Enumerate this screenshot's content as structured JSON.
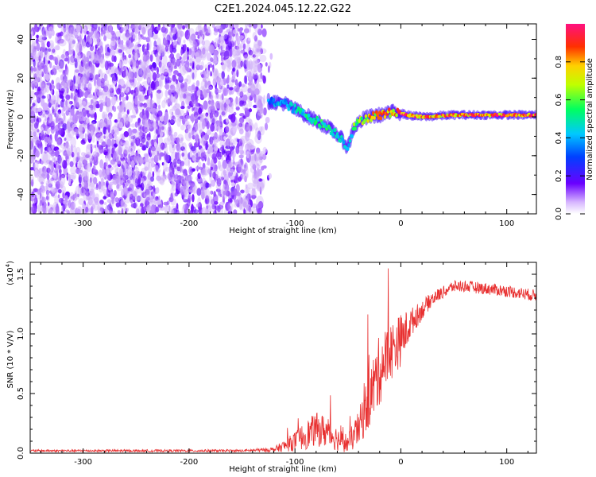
{
  "title": "C2E1.2024.045.12.22.G22",
  "colors": {
    "snr_line": "#e83030",
    "spectrogram_noise": "#7a1ff0",
    "spectrogram_noise_light": "#c9a3f6"
  },
  "colorbar": {
    "label": "Normalized spectral amplitude",
    "ticks": [
      "0.0",
      "0.2",
      "0.4",
      "0.6",
      "0.8"
    ],
    "tick_values": [
      0.0,
      0.2,
      0.4,
      0.6,
      0.8
    ]
  },
  "chart_data": [
    {
      "type": "heatmap",
      "xlabel": "Height of straight line (km)",
      "ylabel": "Frequency (Hz)",
      "xlim": [
        -350,
        128
      ],
      "ylim": [
        -50,
        48
      ],
      "xticks": [
        -300,
        -200,
        -100,
        0,
        100
      ],
      "xtick_labels": [
        "-300",
        "-200",
        "-100",
        "0",
        "100"
      ],
      "yticks": [
        -40,
        -20,
        0,
        20,
        40
      ],
      "ytick_labels": [
        "-40",
        "-20",
        "0",
        "20",
        "40"
      ],
      "colorbar_range": [
        0,
        1
      ],
      "noise_region_x": [
        -350,
        -130
      ],
      "signal_track": {
        "x": [
          -125,
          -110,
          -100,
          -90,
          -80,
          -70,
          -60,
          -55,
          -50,
          -45,
          -40,
          -35,
          -30,
          -20,
          -10,
          -5,
          0,
          5,
          20,
          50,
          80,
          100,
          128
        ],
        "y": [
          8,
          7,
          4,
          1,
          -2,
          -5,
          -9,
          -12,
          -16,
          -6,
          -3,
          -1,
          0,
          1,
          2,
          3,
          2,
          1,
          0,
          1,
          1,
          1,
          1
        ],
        "amplitude": [
          0.4,
          0.45,
          0.5,
          0.55,
          0.55,
          0.55,
          0.5,
          0.5,
          0.45,
          0.6,
          0.7,
          0.75,
          0.8,
          0.85,
          0.9,
          0.9,
          0.95,
          0.95,
          0.9,
          0.9,
          0.95,
          0.95,
          0.95
        ]
      }
    },
    {
      "type": "line",
      "xlabel": "Height of straight line (km)",
      "ylabel": "SNR (10 * V/V)",
      "yscale_label": "(x10",
      "yscale_exp": "4",
      "yscale_close": ")",
      "xlim": [
        -350,
        128
      ],
      "ylim": [
        0,
        1.6
      ],
      "xticks": [
        -300,
        -200,
        -100,
        0,
        100
      ],
      "xtick_labels": [
        "-300",
        "-200",
        "-100",
        "0",
        "100"
      ],
      "yticks": [
        0.0,
        0.5,
        1.0,
        1.5
      ],
      "ytick_labels": [
        "0.0",
        "0.5",
        "1.0",
        "1.5"
      ],
      "series": [
        {
          "x": [
            -350,
            -300,
            -250,
            -200,
            -150,
            -120,
            -110,
            -100,
            -90,
            -80,
            -70,
            -60,
            -50,
            -40,
            -30,
            -20,
            -10,
            0,
            10,
            20,
            30,
            40,
            50,
            60,
            80,
            100,
            128
          ],
          "y": [
            0.02,
            0.02,
            0.02,
            0.02,
            0.02,
            0.03,
            0.06,
            0.1,
            0.15,
            0.2,
            0.18,
            0.12,
            0.08,
            0.2,
            0.45,
            0.7,
            0.85,
            0.95,
            1.1,
            1.2,
            1.3,
            1.35,
            1.4,
            1.4,
            1.38,
            1.36,
            1.32
          ],
          "noise": [
            0.01,
            0.01,
            0.01,
            0.01,
            0.01,
            0.02,
            0.05,
            0.08,
            0.12,
            0.14,
            0.14,
            0.1,
            0.08,
            0.15,
            0.25,
            0.3,
            0.25,
            0.22,
            0.12,
            0.08,
            0.06,
            0.05,
            0.05,
            0.05,
            0.05,
            0.05,
            0.05
          ]
        }
      ]
    }
  ]
}
